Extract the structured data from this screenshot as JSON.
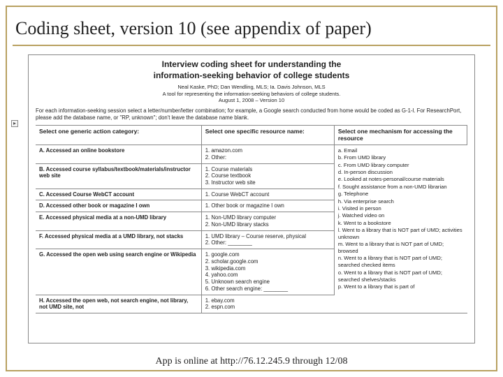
{
  "slide": {
    "title": "Coding sheet, version 10 (see appendix of paper)",
    "footer": "App is online at http://76.12.245.9 through 12/08"
  },
  "doc": {
    "heading1": "Interview coding sheet for understanding the",
    "heading2": "information-seeking behavior of college students",
    "byline1": "Neal Kaske, PhD; Dan Wendling, MLS; Ia. Davis Johnson, MLS",
    "byline2": "A tool for representing the information-seeking behaviors of college students.",
    "byline3": "August 1, 2008 – Version 10",
    "instructions": "For each information-seeking session select a letter/number/letter combination; for example, a Google search conducted from home would be coded as G-1-l. For ResearchPort, please add the database name, or \"RP, unknown\"; don't leave the database name blank.",
    "headers": {
      "c1": "Select one generic action category:",
      "c2": "Select one specific resource name:",
      "c3": "Select one mechanism for accessing the resource"
    },
    "rows": [
      {
        "cat": "A. Accessed an online bookstore",
        "res": "1. amazon.com\n2. Other:"
      },
      {
        "cat": "B. Accessed course syllabus/textbook/materials/instructor web site",
        "res": "1. Course materials\n2. Course textbook\n3. Instructor web site"
      },
      {
        "cat": "C. Accessed Course WebCT account",
        "res": "1. Course WebCT account"
      },
      {
        "cat": "D. Accessed other book or magazine I own",
        "res": "1. Other book or magazine I own"
      },
      {
        "cat": "E. Accessed physical media at a non-UMD library",
        "res": "1. Non-UMD library computer\n2. Non-UMD library stacks"
      },
      {
        "cat": "F. Accessed physical media at a UMD library, not stacks",
        "res": "1. UMD library – Course reserve, physical\n2. Other: ________"
      },
      {
        "cat": "G. Accessed the open web using search engine or Wikipedia",
        "res": "1. google.com\n2. scholar.google.com\n3. wikipedia.com\n4. yahoo.com\n5. Unknown search engine\n6. Other search engine: ________"
      },
      {
        "cat": "H. Accessed the open web, not search engine, not library, not UMD site, not",
        "res": "1. ebay.com\n2. espn.com"
      }
    ],
    "mechanisms": [
      "a. Email",
      "b. From UMD library",
      "c. From UMD library computer",
      "d. In-person discussion",
      "e. Looked at notes-personal/course materials",
      "f. Sought assistance from a non-UMD librarian",
      "g. Telephone",
      "h. Via enterprise search",
      "i. Visited in person",
      "j. Watched video on",
      "k. Went to a bookstore",
      "l. Went to a library that is NOT part of UMD; activities unknown",
      "m. Went to a library that is NOT part of UMD; browsed",
      "n. Went to a library that is NOT part of UMD; searched  checked items",
      "o. Went to a library that is NOT part of UMD; searched shelves/stacks",
      "p. Went to a library that is part of"
    ]
  },
  "colors": {
    "accent": "#b8a060",
    "border": "#888888",
    "text": "#222222"
  }
}
